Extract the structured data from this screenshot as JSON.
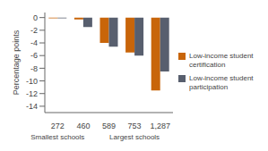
{
  "chart_data": {
    "type": "bar",
    "categories": [
      "272",
      "460",
      "589",
      "753",
      "1,287"
    ],
    "series": [
      {
        "name": "Low-income student\ncertification",
        "color": "#C8650A",
        "values": [
          -0.1,
          -0.3,
          -4.0,
          -5.5,
          -11.5
        ]
      },
      {
        "name": "Low-income student\nparticipation",
        "color": "#585F6E",
        "values": [
          -0.1,
          -1.5,
          -4.6,
          -6.0,
          -8.5
        ]
      }
    ],
    "ylabel": "Percentage points",
    "ylim": [
      -15,
      0.8
    ],
    "yticks": [
      0,
      -2,
      -4,
      -6,
      -8,
      -10,
      -12,
      -14
    ],
    "annotations": [
      {
        "text": "Smallest schools",
        "x": "272"
      },
      {
        "text": "Largest schools",
        "x": "753"
      }
    ],
    "grid": false,
    "legend": "right"
  }
}
